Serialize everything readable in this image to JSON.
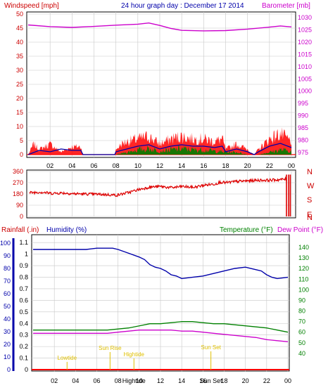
{
  "colors": {
    "wind": "#ff0000",
    "gust": "#ff0000",
    "wind_avg": "#0000aa",
    "wind_green": "#008000",
    "barometer": "#cc00cc",
    "direction": "#dd0000",
    "rainfall": "#ff0000",
    "humidity": "#0000aa",
    "temperature": "#008000",
    "dewpoint": "#cc00cc",
    "annotation": "#e0c000",
    "grid": "#c8c8c8",
    "frame": "#000000"
  },
  "chart_data": [
    {
      "type": "line",
      "title": "24 hour graph day : December 17 2014",
      "ylabel": "Windspeed [mph]",
      "y2label": "Barometer [mb]",
      "x_ticks": [
        "02",
        "04",
        "06",
        "08",
        "10",
        "12",
        "14",
        "16",
        "18",
        "20",
        "22",
        "00"
      ],
      "y_ticks": [
        "0",
        "5",
        "10",
        "15",
        "20",
        "25",
        "30",
        "35",
        "40",
        "45",
        "50"
      ],
      "y2_ticks": [
        "975",
        "980",
        "985",
        "990",
        "995",
        "1000",
        "1005",
        "1010",
        "1015",
        "1020",
        "1025",
        "1030"
      ],
      "ylim": [
        0,
        50
      ],
      "y2lim": [
        975,
        1030
      ],
      "xlim": [
        0,
        24
      ],
      "series": [
        {
          "name": "Barometer [mb]",
          "axis": "right",
          "x": [
            0,
            2,
            4,
            6,
            8,
            10,
            11,
            12,
            13,
            14,
            16,
            18,
            20,
            22,
            23,
            24
          ],
          "values": [
            1027,
            1026.3,
            1026,
            1026.4,
            1026.9,
            1027.3,
            1027.8,
            1026.8,
            1025.6,
            1024.8,
            1024.6,
            1024.7,
            1025.3,
            1026.1,
            1026.6,
            1026.2
          ]
        },
        {
          "name": "Windspeed [mph]",
          "axis": "left",
          "x": [
            0,
            0.5,
            1,
            2,
            3,
            4,
            4.8,
            5,
            6,
            7,
            7.9,
            8,
            8.5,
            9,
            10,
            11,
            12,
            13,
            14,
            15,
            16,
            17,
            17.7,
            18,
            19,
            20,
            20.6,
            21,
            22,
            23,
            24
          ],
          "values": [
            0,
            4,
            2,
            4,
            1,
            3,
            3,
            0,
            0,
            0,
            0,
            2,
            4,
            5,
            6,
            7,
            4,
            6,
            7,
            6,
            6,
            5,
            6,
            2,
            4,
            2,
            0,
            2,
            6,
            8,
            5
          ]
        },
        {
          "x": [
            0,
            1,
            2,
            3,
            4,
            4.8,
            5,
            7.9,
            8,
            9,
            10,
            11,
            12,
            13,
            14,
            15,
            16,
            17,
            17.7,
            18,
            19,
            20,
            20.6,
            21,
            22,
            23,
            24
          ],
          "values": [
            0,
            1.5,
            1,
            2,
            1.5,
            1.5,
            0,
            0,
            1,
            2,
            3,
            3.5,
            2,
            3,
            3.5,
            3,
            3,
            2.5,
            3,
            1,
            2,
            1,
            0,
            1,
            3,
            4,
            2.5
          ]
        },
        {
          "x": [
            8,
            9,
            10,
            11,
            12,
            13,
            14,
            15,
            16,
            17,
            18,
            19,
            20,
            21,
            22,
            23,
            24
          ],
          "values": [
            0,
            1,
            2,
            2.5,
            1.5,
            2,
            2.5,
            2,
            2,
            1.5,
            1,
            1,
            0,
            0,
            1,
            2,
            1.5
          ]
        }
      ]
    },
    {
      "type": "line",
      "y_ticks": [
        "0",
        "90",
        "180",
        "270",
        "360"
      ],
      "right_ticks": [
        "N",
        "W",
        "S",
        "E",
        "N"
      ],
      "ylim": [
        0,
        360
      ],
      "xlim": [
        0,
        24
      ],
      "series": [
        {
          "x": [
            0,
            1,
            2,
            3,
            4,
            5,
            6,
            7,
            8,
            9,
            10,
            11,
            12,
            13,
            14,
            15,
            16,
            17,
            17.5,
            18,
            19,
            20,
            21,
            22,
            23,
            23.6
          ],
          "values": [
            190,
            195,
            185,
            188,
            182,
            180,
            178,
            175,
            170,
            190,
            215,
            235,
            240,
            230,
            240,
            232,
            250,
            260,
            275,
            270,
            280,
            285,
            290,
            290,
            295,
            300
          ]
        }
      ]
    },
    {
      "type": "line",
      "ylabel": "Rainfall (.in)",
      "ylabel2": "Humidity (%)",
      "y2label": "Temperature (°F)",
      "y3label": "Dew Point (°F)",
      "x_ticks": [
        "02",
        "04",
        "06",
        "08",
        "10",
        "12",
        "14",
        "16",
        "18",
        "20",
        "22",
        "00"
      ],
      "rain_ticks": [
        "0",
        "0.1",
        "0.2",
        "0.3",
        "0.4",
        "0.5",
        "0.6",
        "0.7",
        "0.8",
        "0.9",
        "1",
        "1.1"
      ],
      "humidity_ticks": [
        "0",
        "10",
        "20",
        "30",
        "40",
        "50",
        "60",
        "70",
        "80",
        "90",
        "100"
      ],
      "temp_ticks": [
        "40",
        "50",
        "60",
        "70",
        "80",
        "90",
        "100",
        "110",
        "120",
        "130",
        "140"
      ],
      "rain_lim": [
        0,
        1.15
      ],
      "humidity_lim": [
        0,
        105
      ],
      "temp_lim": [
        30,
        148
      ],
      "annotations": [
        {
          "label": "Lowtide",
          "x": 3.2
        },
        {
          "label": "Sun Rise",
          "x": 7.25
        },
        {
          "label": "Hightide",
          "x": 9.5
        },
        {
          "label": "Sun Set",
          "x": 16.75
        }
      ],
      "bottom_labels": [
        {
          "label": "Hightide",
          "x": 9.5
        },
        {
          "label": "Sun Set",
          "x": 16.75
        }
      ],
      "series": [
        {
          "name": "Humidity (%)",
          "x": [
            0,
            1,
            2,
            3,
            4,
            5,
            6,
            7,
            7.5,
            8,
            9,
            10,
            10.5,
            11,
            11.5,
            12,
            12.5,
            13,
            13.5,
            14,
            15,
            16,
            17,
            18,
            19,
            20,
            21,
            21.5,
            22,
            22.5,
            23,
            24
          ],
          "values": [
            95,
            95,
            95,
            95,
            95,
            95,
            96,
            96,
            96,
            95,
            92,
            89,
            87,
            83,
            81,
            80,
            78,
            75,
            74,
            72,
            73,
            74,
            76,
            78,
            80,
            81,
            79,
            78,
            75,
            73,
            72,
            73
          ]
        },
        {
          "name": "Temperature (°F)",
          "x": [
            0,
            2,
            4,
            6,
            7,
            8,
            9,
            10,
            11,
            12,
            13,
            14,
            15,
            16,
            17,
            18,
            19,
            20,
            21,
            22,
            23,
            24
          ],
          "values": [
            62,
            62,
            62,
            62,
            62,
            63,
            64,
            66,
            68,
            68,
            69,
            70,
            70,
            69,
            68,
            68,
            67,
            66,
            65,
            64,
            62,
            60
          ]
        },
        {
          "name": "Dew Point (°F)",
          "x": [
            0,
            2,
            4,
            6,
            7,
            8,
            9,
            10,
            11,
            12,
            13,
            14,
            15,
            16,
            17,
            18,
            19,
            20,
            21,
            22,
            23,
            24
          ],
          "values": [
            59,
            59,
            59,
            59,
            59,
            60,
            61,
            62,
            62,
            62,
            62,
            61,
            61,
            60,
            59,
            58,
            57,
            56,
            55,
            53,
            52,
            51
          ]
        },
        {
          "name": "Rainfall (.in)",
          "x": [
            0,
            24
          ],
          "values": [
            0,
            0
          ]
        }
      ]
    }
  ]
}
